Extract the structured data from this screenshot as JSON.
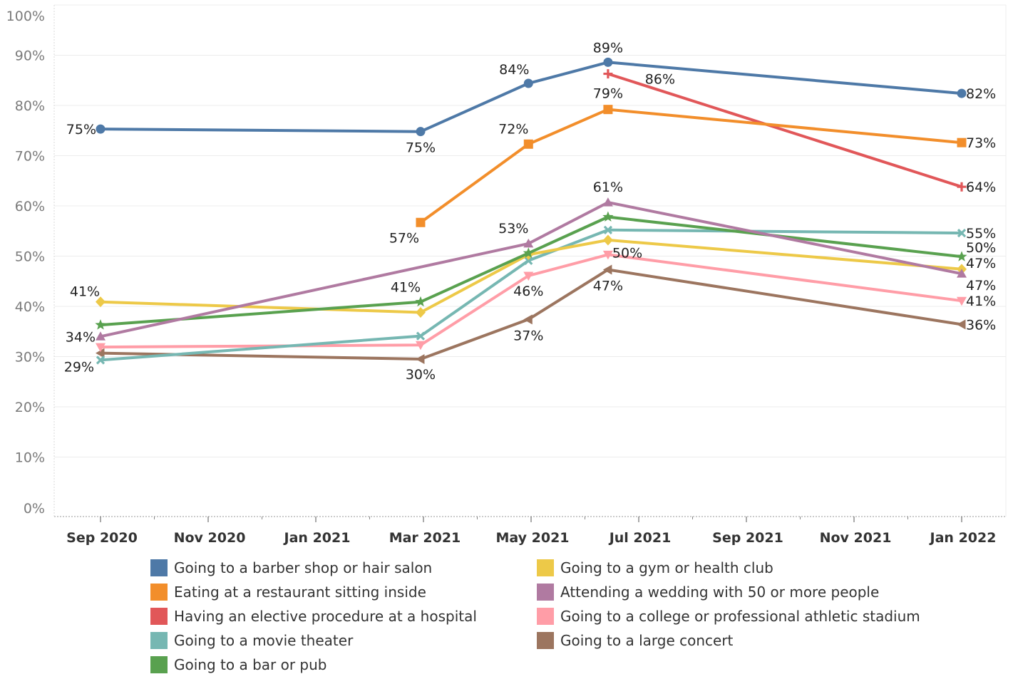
{
  "chart_data": {
    "type": "line",
    "x_ticks": [
      "Sep 2020",
      "Nov 2020",
      "Jan 2021",
      "Mar 2021",
      "May 2021",
      "Jul 2021",
      "Sep 2021",
      "Nov 2021",
      "Jan 2022"
    ],
    "y_ticks": [
      "100%",
      "90%",
      "80%",
      "70%",
      "60%",
      "50%",
      "40%",
      "30%",
      "20%",
      "10%",
      "0%"
    ],
    "ylim": [
      0,
      100
    ],
    "y_unit": "%",
    "grid": true,
    "legend_position": "bottom",
    "series": [
      {
        "name": "Going to a barber shop or hair salon",
        "color": "#4e79a7",
        "marker": "circle",
        "points": [
          {
            "x": "2020-09-01",
            "y": 75.3,
            "label": "75%"
          },
          {
            "x": "2021-03-01",
            "y": 74.8,
            "label": "75%"
          },
          {
            "x": "2021-05-01",
            "y": 84.4,
            "label": "84%"
          },
          {
            "x": "2021-06-15",
            "y": 88.6,
            "label": "89%"
          },
          {
            "x": "2022-01-01",
            "y": 82.4,
            "label": "82%"
          }
        ]
      },
      {
        "name": "Eating at a restaurant sitting inside",
        "color": "#f28e2b",
        "marker": "square",
        "points": [
          {
            "x": "2021-03-01",
            "y": 56.7,
            "label": "57%"
          },
          {
            "x": "2021-05-01",
            "y": 72.3,
            "label": "72%"
          },
          {
            "x": "2021-06-15",
            "y": 79.2,
            "label": "79%"
          },
          {
            "x": "2022-01-01",
            "y": 72.6,
            "label": "73%"
          }
        ]
      },
      {
        "name": "Having an elective procedure at a hospital",
        "color": "#e15759",
        "marker": "plus",
        "points": [
          {
            "x": "2021-06-15",
            "y": 86.3,
            "label": "86%"
          },
          {
            "x": "2022-01-01",
            "y": 63.8,
            "label": "64%"
          }
        ]
      },
      {
        "name": "Going to a movie theater",
        "color": "#76b7b2",
        "marker": "x",
        "points": [
          {
            "x": "2020-09-01",
            "y": 29.3,
            "label": "29%"
          },
          {
            "x": "2021-03-01",
            "y": 34.1,
            "label": ""
          },
          {
            "x": "2021-05-01",
            "y": 49.1,
            "label": ""
          },
          {
            "x": "2021-06-15",
            "y": 55.2,
            "label": ""
          },
          {
            "x": "2022-01-01",
            "y": 54.6,
            "label": "55%"
          }
        ]
      },
      {
        "name": "Going to a bar or pub",
        "color": "#59a14f",
        "marker": "star",
        "points": [
          {
            "x": "2020-09-01",
            "y": 36.3,
            "label": ""
          },
          {
            "x": "2021-03-01",
            "y": 40.9,
            "label": "41%"
          },
          {
            "x": "2021-05-01",
            "y": 50.6,
            "label": ""
          },
          {
            "x": "2021-06-15",
            "y": 57.8,
            "label": ""
          },
          {
            "x": "2022-01-01",
            "y": 49.9,
            "label": "50%"
          }
        ]
      },
      {
        "name": "Going to a gym or health club",
        "color": "#edc948",
        "marker": "diamond",
        "points": [
          {
            "x": "2020-09-01",
            "y": 40.9,
            "label": "41%"
          },
          {
            "x": "2021-03-01",
            "y": 38.8,
            "label": ""
          },
          {
            "x": "2021-05-01",
            "y": 50.3,
            "label": ""
          },
          {
            "x": "2021-06-15",
            "y": 53.2,
            "label": ""
          },
          {
            "x": "2022-01-01",
            "y": 47.4,
            "label": "47%"
          }
        ]
      },
      {
        "name": "Attending a wedding with 50 or more people",
        "color": "#b07aa1",
        "marker": "triangle-up",
        "points": [
          {
            "x": "2020-09-01",
            "y": 34.0,
            "label": "34%"
          },
          {
            "x": "2021-05-01",
            "y": 52.5,
            "label": "53%"
          },
          {
            "x": "2021-06-15",
            "y": 60.7,
            "label": "61%"
          },
          {
            "x": "2022-01-01",
            "y": 46.5,
            "label": "47%"
          }
        ]
      },
      {
        "name": "Going to a college or professional athletic stadium",
        "color": "#ff9da7",
        "marker": "triangle-down",
        "points": [
          {
            "x": "2020-09-01",
            "y": 31.9,
            "label": ""
          },
          {
            "x": "2021-03-01",
            "y": 32.3,
            "label": ""
          },
          {
            "x": "2021-05-01",
            "y": 46.1,
            "label": "46%"
          },
          {
            "x": "2021-06-15",
            "y": 50.3,
            "label": "50%"
          },
          {
            "x": "2022-01-01",
            "y": 41.1,
            "label": "41%"
          }
        ]
      },
      {
        "name": "Going to a large concert",
        "color": "#9c755f",
        "marker": "triangle-left",
        "points": [
          {
            "x": "2020-09-01",
            "y": 30.7,
            "label": ""
          },
          {
            "x": "2021-03-01",
            "y": 29.5,
            "label": "30%"
          },
          {
            "x": "2021-05-01",
            "y": 37.4,
            "label": "37%"
          },
          {
            "x": "2021-06-15",
            "y": 47.3,
            "label": "47%"
          },
          {
            "x": "2022-01-01",
            "y": 36.4,
            "label": "36%"
          }
        ]
      }
    ]
  }
}
